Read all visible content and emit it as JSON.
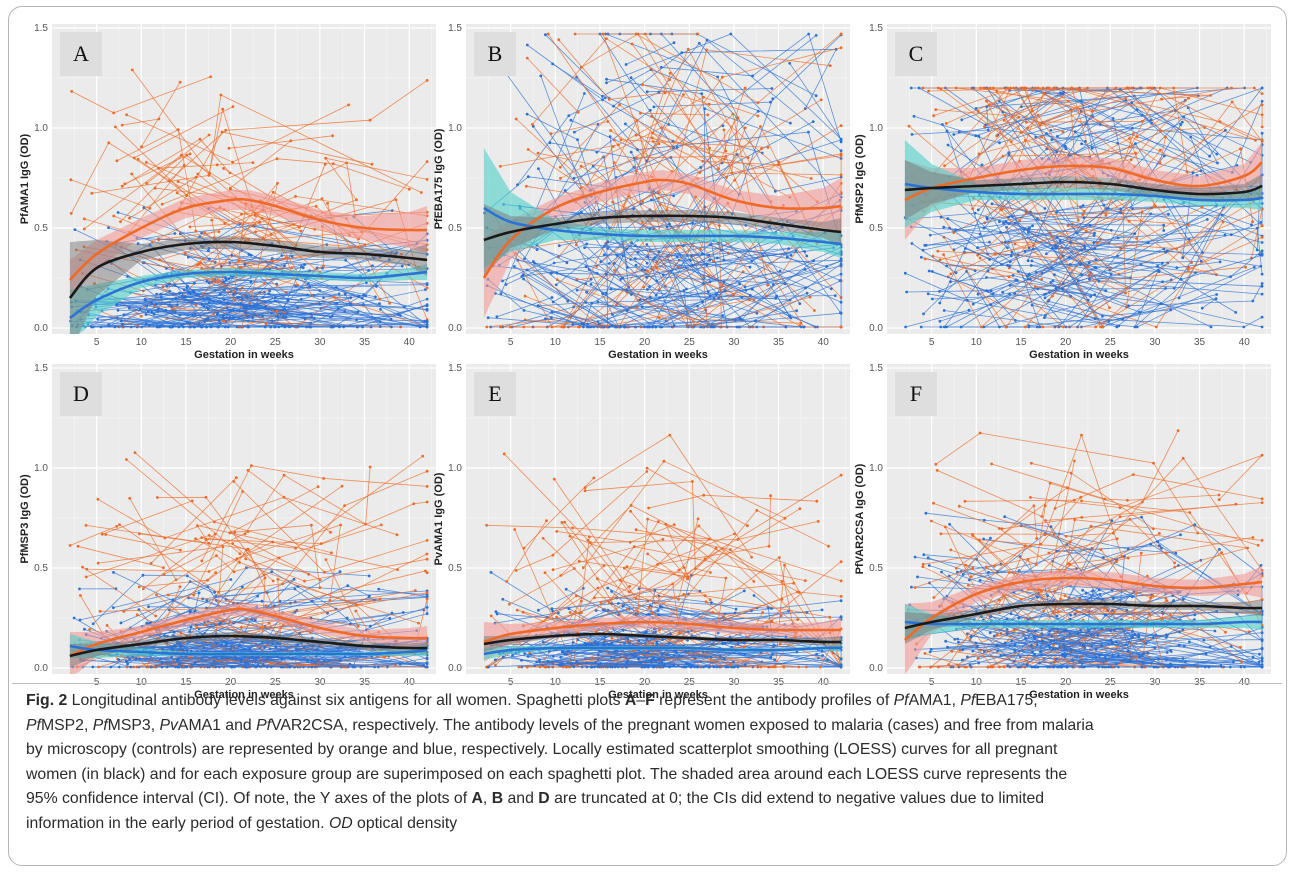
{
  "figure": {
    "caption_lines": [
      [
        {
          "t": "Fig. 2",
          "b": true
        },
        {
          "t": "  Longitudinal antibody levels against six antigens for all women. Spaghetti plots "
        },
        {
          "t": "A",
          "b": true
        },
        {
          "t": "–"
        },
        {
          "t": "F",
          "b": true
        },
        {
          "t": " represent the antibody profiles of "
        },
        {
          "t": "Pf",
          "i": true
        },
        {
          "t": "AMA1, "
        },
        {
          "t": "Pf",
          "i": true
        },
        {
          "t": "EBA175,"
        }
      ],
      [
        {
          "t": "Pf",
          "i": true
        },
        {
          "t": "MSP2, "
        },
        {
          "t": "Pf",
          "i": true
        },
        {
          "t": "MSP3, "
        },
        {
          "t": "Pv",
          "i": true
        },
        {
          "t": "AMA1 and "
        },
        {
          "t": "Pf",
          "i": true
        },
        {
          "t": "VAR2CSA, respectively. The antibody levels of the pregnant women exposed to malaria (cases) and free from malaria"
        }
      ],
      [
        {
          "t": "by microscopy (controls) are represented by orange and blue, respectively. Locally estimated scatterplot smoothing (LOESS) curves for all pregnant"
        }
      ],
      [
        {
          "t": "women (in black) and for each exposure group are superimposed on each spaghetti plot. The shaded area around each LOESS curve represents the"
        }
      ],
      [
        {
          "t": "95% confidence interval (CI). Of note, the Y axes of the plots of "
        },
        {
          "t": "A",
          "b": true
        },
        {
          "t": ", "
        },
        {
          "t": "B",
          "b": true
        },
        {
          "t": " and "
        },
        {
          "t": "D",
          "b": true
        },
        {
          "t": " are truncated at 0; the CIs did extend to negative values due to limited"
        }
      ],
      [
        {
          "t": "information in the early period of gestation. "
        },
        {
          "t": "OD",
          "i": true
        },
        {
          "t": " optical density"
        }
      ]
    ]
  },
  "colors": {
    "cases": "#ef6a26",
    "controls": "#2b72d6",
    "all": "#1a1a1a",
    "cases_band": "#f49a96",
    "controls_band": "#4fd1c9",
    "all_band": "#7a7a7a",
    "panel_bg": "#ebebeb",
    "grid": "#ffffff"
  },
  "chart_data": [
    {
      "type": "line",
      "panel": "A",
      "ylabel": "PfAMA1 IgG (OD)",
      "xlabel": "Gestation in weeks",
      "xlim": [
        0,
        43
      ],
      "ylim": [
        -0.03,
        1.52
      ],
      "xticks": [
        "5",
        "10",
        "15",
        "20",
        "25",
        "30",
        "35",
        "40"
      ],
      "xtick_values": [
        5,
        10,
        15,
        20,
        25,
        30,
        35,
        40
      ],
      "yticks": [
        "0.0",
        "0.5",
        "1.0",
        "1.5"
      ],
      "ytick_values": [
        0,
        0.5,
        1,
        1.5
      ],
      "spaghetti": {
        "cases_center": 0.55,
        "cases_spread": 0.95,
        "controls_center": 0.18,
        "controls_spread": 0.55,
        "max": 1.5
      },
      "series": [
        {
          "name": "Cases (LOESS)",
          "x": [
            2,
            5,
            10,
            15,
            20,
            22,
            25,
            30,
            35,
            40,
            42
          ],
          "values": [
            0.24,
            0.37,
            0.5,
            0.6,
            0.64,
            0.64,
            0.61,
            0.54,
            0.5,
            0.49,
            0.49
          ],
          "band": [
            0.1,
            0.07,
            0.05,
            0.05,
            0.05,
            0.05,
            0.05,
            0.05,
            0.06,
            0.09,
            0.12
          ]
        },
        {
          "name": "Controls (LOESS)",
          "x": [
            2,
            5,
            10,
            15,
            20,
            25,
            30,
            35,
            40,
            42
          ],
          "values": [
            0.05,
            0.14,
            0.23,
            0.27,
            0.28,
            0.27,
            0.26,
            0.25,
            0.27,
            0.28
          ],
          "band": [
            0.14,
            0.08,
            0.03,
            0.02,
            0.02,
            0.02,
            0.02,
            0.02,
            0.03,
            0.04
          ]
        },
        {
          "name": "All (LOESS)",
          "x": [
            2,
            5,
            10,
            15,
            20,
            25,
            30,
            35,
            40,
            42
          ],
          "values": [
            0.15,
            0.3,
            0.38,
            0.42,
            0.43,
            0.41,
            0.38,
            0.37,
            0.35,
            0.34
          ],
          "band": [
            0.28,
            0.14,
            0.04,
            0.03,
            0.03,
            0.03,
            0.03,
            0.03,
            0.04,
            0.08
          ]
        }
      ]
    },
    {
      "type": "line",
      "panel": "B",
      "ylabel": "PfEBA175 IgG (OD)",
      "xlabel": "Gestation in weeks",
      "xlim": [
        0,
        43
      ],
      "ylim": [
        -0.03,
        1.52
      ],
      "xticks": [
        "5",
        "10",
        "15",
        "20",
        "25",
        "30",
        "35",
        "40"
      ],
      "xtick_values": [
        5,
        10,
        15,
        20,
        25,
        30,
        35,
        40
      ],
      "yticks": [
        "0.0",
        "0.5",
        "1.0",
        "1.5"
      ],
      "ytick_values": [
        0,
        0.5,
        1,
        1.5
      ],
      "spaghetti": {
        "cases_center": 0.65,
        "cases_spread": 1.45,
        "controls_center": 0.5,
        "controls_spread": 1.45,
        "max": 1.47
      },
      "series": [
        {
          "name": "Cases (LOESS)",
          "x": [
            2,
            5,
            10,
            15,
            20,
            22,
            25,
            30,
            35,
            40,
            42
          ],
          "values": [
            0.25,
            0.44,
            0.6,
            0.68,
            0.73,
            0.74,
            0.72,
            0.64,
            0.6,
            0.6,
            0.61
          ],
          "band": [
            0.2,
            0.1,
            0.05,
            0.05,
            0.05,
            0.05,
            0.05,
            0.05,
            0.06,
            0.1,
            0.14
          ]
        },
        {
          "name": "Controls (LOESS)",
          "x": [
            2,
            5,
            10,
            15,
            20,
            25,
            30,
            35,
            40,
            42
          ],
          "values": [
            0.6,
            0.53,
            0.49,
            0.47,
            0.46,
            0.46,
            0.46,
            0.45,
            0.43,
            0.42
          ],
          "band": [
            0.3,
            0.15,
            0.05,
            0.03,
            0.03,
            0.03,
            0.03,
            0.03,
            0.05,
            0.07
          ]
        },
        {
          "name": "All (LOESS)",
          "x": [
            2,
            5,
            10,
            15,
            20,
            25,
            30,
            35,
            40,
            42
          ],
          "values": [
            0.44,
            0.48,
            0.52,
            0.55,
            0.56,
            0.56,
            0.55,
            0.52,
            0.49,
            0.48
          ],
          "band": [
            0.18,
            0.08,
            0.03,
            0.03,
            0.03,
            0.03,
            0.03,
            0.03,
            0.04,
            0.07
          ]
        }
      ]
    },
    {
      "type": "line",
      "panel": "C",
      "ylabel": "PfMSP2 IgG (OD)",
      "xlabel": "Gestation in weeks",
      "xlim": [
        0,
        43
      ],
      "ylim": [
        -0.03,
        1.52
      ],
      "xticks": [
        "5",
        "10",
        "15",
        "20",
        "25",
        "30",
        "35",
        "40"
      ],
      "xtick_values": [
        5,
        10,
        15,
        20,
        25,
        30,
        35,
        40
      ],
      "yticks": [
        "0.0",
        "0.5",
        "1.0",
        "1.5"
      ],
      "ytick_values": [
        0,
        0.5,
        1,
        1.5
      ],
      "spaghetti": {
        "cases_center": 0.75,
        "cases_spread": 1.2,
        "controls_center": 0.65,
        "controls_spread": 1.2,
        "max": 1.2
      },
      "series": [
        {
          "name": "Cases (LOESS)",
          "x": [
            2,
            5,
            10,
            15,
            20,
            25,
            30,
            35,
            40,
            42
          ],
          "values": [
            0.64,
            0.7,
            0.75,
            0.79,
            0.81,
            0.8,
            0.74,
            0.71,
            0.76,
            0.83
          ],
          "band": [
            0.2,
            0.1,
            0.05,
            0.05,
            0.05,
            0.05,
            0.05,
            0.05,
            0.06,
            0.1
          ]
        },
        {
          "name": "Controls (LOESS)",
          "x": [
            2,
            5,
            10,
            15,
            20,
            25,
            30,
            35,
            40,
            42
          ],
          "values": [
            0.72,
            0.7,
            0.68,
            0.67,
            0.67,
            0.67,
            0.66,
            0.64,
            0.64,
            0.65
          ],
          "band": [
            0.22,
            0.12,
            0.04,
            0.03,
            0.03,
            0.03,
            0.03,
            0.03,
            0.04,
            0.06
          ]
        },
        {
          "name": "All (LOESS)",
          "x": [
            2,
            5,
            10,
            15,
            20,
            25,
            30,
            35,
            40,
            42
          ],
          "values": [
            0.69,
            0.7,
            0.71,
            0.72,
            0.73,
            0.72,
            0.69,
            0.67,
            0.68,
            0.71
          ],
          "band": [
            0.15,
            0.08,
            0.03,
            0.03,
            0.03,
            0.03,
            0.03,
            0.03,
            0.04,
            0.06
          ]
        }
      ]
    },
    {
      "type": "line",
      "panel": "D",
      "ylabel": "PfMSP3 IgG (OD)",
      "xlabel": "Gestation in weeks",
      "xlim": [
        0,
        43
      ],
      "ylim": [
        -0.03,
        1.52
      ],
      "xticks": [
        "5",
        "10",
        "15",
        "20",
        "25",
        "30",
        "35",
        "40"
      ],
      "xtick_values": [
        5,
        10,
        15,
        20,
        25,
        30,
        35,
        40
      ],
      "yticks": [
        "0.0",
        "0.5",
        "1.0",
        "1.5"
      ],
      "ytick_values": [
        0,
        0.5,
        1,
        1.5
      ],
      "spaghetti": {
        "cases_center": 0.3,
        "cases_spread": 1.0,
        "controls_center": 0.1,
        "controls_spread": 0.5,
        "max": 1.52
      },
      "series": [
        {
          "name": "Cases (LOESS)",
          "x": [
            2,
            5,
            10,
            15,
            20,
            22,
            25,
            30,
            35,
            40,
            42
          ],
          "values": [
            0.06,
            0.12,
            0.18,
            0.24,
            0.29,
            0.29,
            0.26,
            0.2,
            0.16,
            0.15,
            0.15
          ],
          "band": [
            0.12,
            0.06,
            0.03,
            0.03,
            0.03,
            0.03,
            0.03,
            0.03,
            0.03,
            0.05,
            0.06
          ]
        },
        {
          "name": "Controls (LOESS)",
          "x": [
            2,
            5,
            10,
            15,
            20,
            25,
            30,
            35,
            40,
            42
          ],
          "values": [
            0.11,
            0.09,
            0.08,
            0.07,
            0.07,
            0.07,
            0.07,
            0.07,
            0.08,
            0.09
          ],
          "band": [
            0.06,
            0.04,
            0.02,
            0.01,
            0.01,
            0.01,
            0.01,
            0.01,
            0.02,
            0.03
          ]
        },
        {
          "name": "All (LOESS)",
          "x": [
            2,
            5,
            10,
            15,
            20,
            25,
            30,
            35,
            40,
            42
          ],
          "values": [
            0.06,
            0.09,
            0.12,
            0.15,
            0.16,
            0.15,
            0.13,
            0.11,
            0.1,
            0.1
          ],
          "band": [
            0.06,
            0.03,
            0.02,
            0.02,
            0.02,
            0.02,
            0.02,
            0.02,
            0.02,
            0.03
          ]
        }
      ]
    },
    {
      "type": "line",
      "panel": "E",
      "ylabel": "PvAMA1 IgG (OD)",
      "xlabel": "Gestation in weeks",
      "xlim": [
        0,
        43
      ],
      "ylim": [
        -0.03,
        1.52
      ],
      "xticks": [
        "5",
        "10",
        "15",
        "20",
        "25",
        "30",
        "35",
        "40"
      ],
      "xtick_values": [
        5,
        10,
        15,
        20,
        25,
        30,
        35,
        40
      ],
      "yticks": [
        "0.0",
        "0.5",
        "1.0",
        "1.5"
      ],
      "ytick_values": [
        0,
        0.5,
        1,
        1.5
      ],
      "spaghetti": {
        "cases_center": 0.3,
        "cases_spread": 1.1,
        "controls_center": 0.12,
        "controls_spread": 0.45,
        "max": 1.48
      },
      "series": [
        {
          "name": "Cases (LOESS)",
          "x": [
            2,
            5,
            10,
            15,
            20,
            25,
            30,
            35,
            40,
            42
          ],
          "values": [
            0.13,
            0.17,
            0.2,
            0.22,
            0.23,
            0.22,
            0.2,
            0.19,
            0.19,
            0.19
          ],
          "band": [
            0.1,
            0.05,
            0.03,
            0.03,
            0.03,
            0.03,
            0.03,
            0.03,
            0.04,
            0.06
          ]
        },
        {
          "name": "Controls (LOESS)",
          "x": [
            2,
            5,
            10,
            15,
            20,
            25,
            30,
            35,
            40,
            42
          ],
          "values": [
            0.07,
            0.09,
            0.1,
            0.1,
            0.1,
            0.1,
            0.09,
            0.09,
            0.1,
            0.1
          ],
          "band": [
            0.03,
            0.02,
            0.01,
            0.01,
            0.01,
            0.01,
            0.01,
            0.01,
            0.01,
            0.02
          ]
        },
        {
          "name": "All (LOESS)",
          "x": [
            2,
            5,
            10,
            15,
            20,
            25,
            30,
            35,
            40,
            42
          ],
          "values": [
            0.12,
            0.14,
            0.16,
            0.17,
            0.16,
            0.15,
            0.14,
            0.14,
            0.13,
            0.13
          ],
          "band": [
            0.04,
            0.02,
            0.01,
            0.01,
            0.01,
            0.01,
            0.01,
            0.01,
            0.02,
            0.03
          ]
        }
      ]
    },
    {
      "type": "line",
      "panel": "F",
      "ylabel": "PfVAR2CSA IgG (OD)",
      "xlabel": "Gestation in weeks",
      "xlim": [
        0,
        43
      ],
      "ylim": [
        -0.03,
        1.52
      ],
      "xticks": [
        "5",
        "10",
        "15",
        "20",
        "25",
        "30",
        "35",
        "40"
      ],
      "xtick_values": [
        5,
        10,
        15,
        20,
        25,
        30,
        35,
        40
      ],
      "yticks": [
        "0.0",
        "0.5",
        "1.0",
        "1.5"
      ],
      "ytick_values": [
        0,
        0.5,
        1,
        1.5
      ],
      "spaghetti": {
        "cases_center": 0.4,
        "cases_spread": 1.0,
        "controls_center": 0.2,
        "controls_spread": 0.7,
        "max": 1.3
      },
      "series": [
        {
          "name": "Cases (LOESS)",
          "x": [
            2,
            5,
            10,
            15,
            20,
            25,
            30,
            35,
            40,
            42
          ],
          "values": [
            0.14,
            0.25,
            0.37,
            0.43,
            0.45,
            0.44,
            0.41,
            0.4,
            0.42,
            0.43
          ],
          "band": [
            0.18,
            0.08,
            0.04,
            0.04,
            0.04,
            0.04,
            0.04,
            0.04,
            0.05,
            0.08
          ]
        },
        {
          "name": "Controls (LOESS)",
          "x": [
            2,
            5,
            10,
            15,
            20,
            25,
            30,
            35,
            40,
            42
          ],
          "values": [
            0.23,
            0.22,
            0.22,
            0.22,
            0.22,
            0.22,
            0.22,
            0.22,
            0.23,
            0.23
          ],
          "band": [
            0.09,
            0.05,
            0.02,
            0.02,
            0.02,
            0.02,
            0.02,
            0.02,
            0.03,
            0.04
          ]
        },
        {
          "name": "All (LOESS)",
          "x": [
            2,
            5,
            10,
            15,
            20,
            25,
            30,
            35,
            40,
            42
          ],
          "values": [
            0.2,
            0.23,
            0.27,
            0.31,
            0.32,
            0.32,
            0.31,
            0.31,
            0.3,
            0.3
          ],
          "band": [
            0.08,
            0.04,
            0.02,
            0.02,
            0.02,
            0.02,
            0.02,
            0.02,
            0.03,
            0.04
          ]
        }
      ]
    }
  ]
}
